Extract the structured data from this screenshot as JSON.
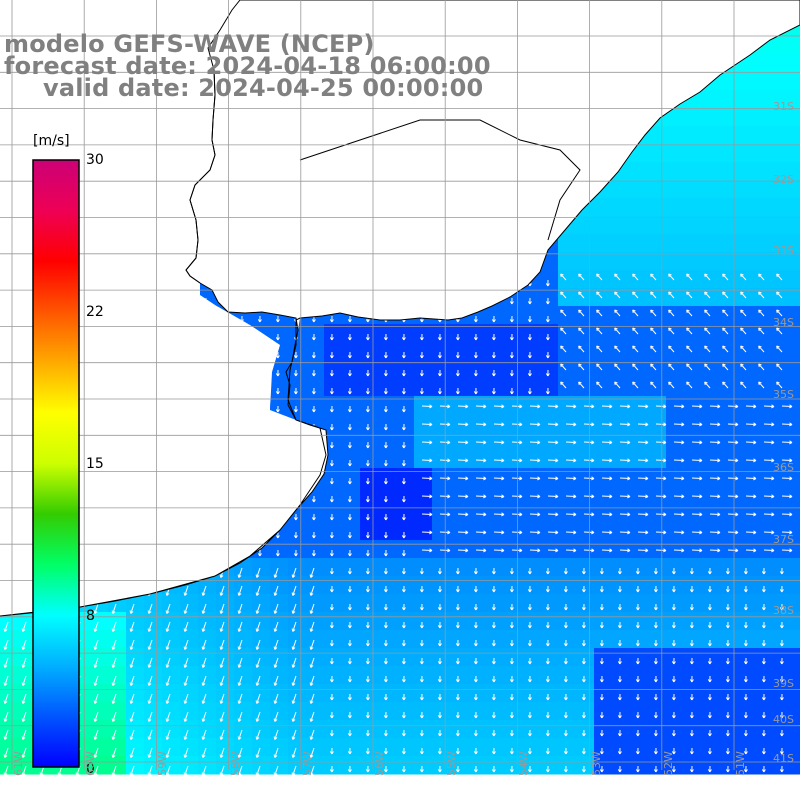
{
  "header": {
    "model_line": "modelo GEFS-WAVE (NCEP)",
    "forecast_line": "forecast date: 2024-04-18 06:00:00",
    "valid_line": "valid date: 2024-04-25 00:00:00"
  },
  "colorbar": {
    "unit": "[m/s]",
    "ticks": [
      "30",
      "22",
      "15",
      "8",
      "0"
    ],
    "tick_values": [
      30,
      22,
      15,
      8,
      0
    ],
    "range": [
      0,
      30
    ],
    "colors": [
      "#0000ff",
      "#0055ff",
      "#00b0ff",
      "#00ffff",
      "#00ff66",
      "#33cc00",
      "#ccff00",
      "#ffff00",
      "#ffaa00",
      "#ff5500",
      "#ff0000",
      "#ee0055",
      "#cc0077"
    ]
  },
  "map": {
    "lat_labels": [
      "31S",
      "32S",
      "33S",
      "34S",
      "35S",
      "36S",
      "37S",
      "38S",
      "39S",
      "40S",
      "41S"
    ],
    "lon_labels": [
      "61W",
      "60W",
      "59W",
      "58W",
      "57W",
      "56W",
      "55W",
      "54W",
      "53W",
      "52W",
      "51W"
    ],
    "land_color": "#ffffff",
    "grid_color": "#999999",
    "vector_color": "#ffffff"
  }
}
